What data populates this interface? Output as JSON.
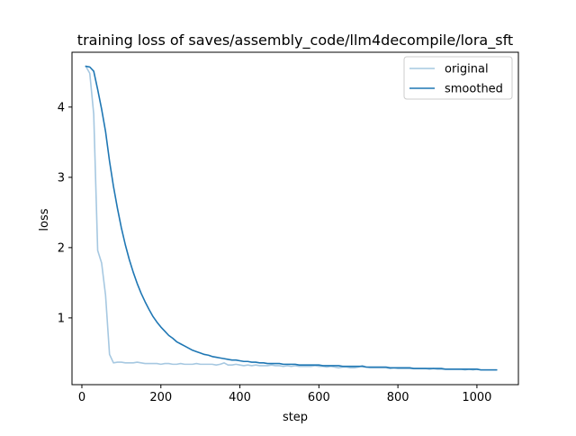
{
  "chart_data": {
    "type": "line",
    "title": "training loss of saves/assembly_code/llm4decompile/lora_sft",
    "xlabel": "step",
    "ylabel": "loss",
    "xlim": [
      -25,
      1105
    ],
    "ylim": [
      0.05,
      4.78
    ],
    "xticks": [
      0,
      200,
      400,
      600,
      800,
      1000
    ],
    "yticks": [
      1,
      2,
      3,
      4
    ],
    "grid": false,
    "legend_position": "top-right",
    "series": [
      {
        "name": "original",
        "color": "#a6c8e1",
        "x": [
          10,
          20,
          30,
          40,
          50,
          60,
          70,
          80,
          90,
          100,
          110,
          120,
          130,
          140,
          150,
          160,
          170,
          180,
          190,
          200,
          210,
          220,
          230,
          240,
          250,
          260,
          270,
          280,
          290,
          300,
          310,
          320,
          330,
          340,
          350,
          360,
          370,
          380,
          390,
          400,
          410,
          420,
          430,
          440,
          450,
          460,
          470,
          480,
          490,
          500,
          510,
          520,
          530,
          540,
          550,
          560,
          570,
          580,
          590,
          600,
          610,
          620,
          630,
          640,
          650,
          660,
          670,
          680,
          690,
          700,
          710,
          720,
          730,
          740,
          750,
          760,
          770,
          780,
          790,
          800,
          810,
          820,
          830,
          840,
          850,
          860,
          870,
          880,
          890,
          900,
          910,
          920,
          930,
          940,
          950,
          960,
          970,
          980,
          990,
          1000,
          1010,
          1020,
          1030,
          1040,
          1050
        ],
        "values": [
          4.58,
          4.48,
          3.9,
          1.96,
          1.78,
          1.32,
          0.48,
          0.36,
          0.37,
          0.37,
          0.36,
          0.36,
          0.36,
          0.37,
          0.36,
          0.35,
          0.35,
          0.35,
          0.35,
          0.34,
          0.35,
          0.35,
          0.34,
          0.34,
          0.35,
          0.34,
          0.34,
          0.34,
          0.35,
          0.34,
          0.34,
          0.34,
          0.34,
          0.33,
          0.34,
          0.36,
          0.33,
          0.33,
          0.34,
          0.33,
          0.32,
          0.33,
          0.32,
          0.33,
          0.32,
          0.32,
          0.32,
          0.33,
          0.32,
          0.32,
          0.31,
          0.32,
          0.31,
          0.32,
          0.31,
          0.31,
          0.31,
          0.31,
          0.32,
          0.31,
          0.31,
          0.3,
          0.31,
          0.3,
          0.29,
          0.3,
          0.3,
          0.29,
          0.29,
          0.3,
          0.32,
          0.3,
          0.29,
          0.29,
          0.29,
          0.29,
          0.29,
          0.28,
          0.29,
          0.28,
          0.28,
          0.28,
          0.28,
          0.28,
          0.28,
          0.28,
          0.28,
          0.27,
          0.28,
          0.27,
          0.27,
          0.27,
          0.27,
          0.27,
          0.27,
          0.27,
          0.26,
          0.27,
          0.26,
          0.27,
          0.26,
          0.26,
          0.26,
          0.26,
          0.26
        ]
      },
      {
        "name": "smoothed",
        "color": "#1f77b4",
        "x": [
          10,
          20,
          30,
          40,
          50,
          60,
          70,
          80,
          90,
          100,
          110,
          120,
          130,
          140,
          150,
          160,
          170,
          180,
          190,
          200,
          210,
          220,
          230,
          240,
          250,
          260,
          270,
          280,
          290,
          300,
          310,
          320,
          330,
          340,
          350,
          360,
          370,
          380,
          390,
          400,
          410,
          420,
          430,
          440,
          450,
          460,
          470,
          480,
          490,
          500,
          510,
          520,
          530,
          540,
          550,
          560,
          570,
          580,
          590,
          600,
          610,
          620,
          630,
          640,
          650,
          660,
          670,
          680,
          690,
          700,
          710,
          720,
          730,
          740,
          750,
          760,
          770,
          780,
          790,
          800,
          810,
          820,
          830,
          840,
          850,
          860,
          870,
          880,
          890,
          900,
          910,
          920,
          930,
          940,
          950,
          960,
          970,
          980,
          990,
          1000,
          1010,
          1020,
          1030,
          1040,
          1050
        ],
        "values": [
          4.58,
          4.57,
          4.51,
          4.25,
          3.97,
          3.65,
          3.23,
          2.87,
          2.56,
          2.28,
          2.04,
          1.83,
          1.65,
          1.49,
          1.35,
          1.23,
          1.12,
          1.02,
          0.94,
          0.87,
          0.81,
          0.75,
          0.71,
          0.66,
          0.63,
          0.6,
          0.57,
          0.54,
          0.52,
          0.5,
          0.48,
          0.47,
          0.45,
          0.44,
          0.43,
          0.42,
          0.41,
          0.4,
          0.4,
          0.39,
          0.38,
          0.38,
          0.37,
          0.37,
          0.36,
          0.36,
          0.35,
          0.35,
          0.35,
          0.35,
          0.34,
          0.34,
          0.34,
          0.34,
          0.33,
          0.33,
          0.33,
          0.33,
          0.33,
          0.33,
          0.32,
          0.32,
          0.32,
          0.32,
          0.32,
          0.31,
          0.31,
          0.31,
          0.31,
          0.31,
          0.31,
          0.3,
          0.3,
          0.3,
          0.3,
          0.3,
          0.3,
          0.29,
          0.29,
          0.29,
          0.29,
          0.29,
          0.29,
          0.28,
          0.28,
          0.28,
          0.28,
          0.28,
          0.28,
          0.28,
          0.28,
          0.27,
          0.27,
          0.27,
          0.27,
          0.27,
          0.27,
          0.27,
          0.27,
          0.27,
          0.26,
          0.26,
          0.26,
          0.26,
          0.26
        ]
      }
    ]
  }
}
